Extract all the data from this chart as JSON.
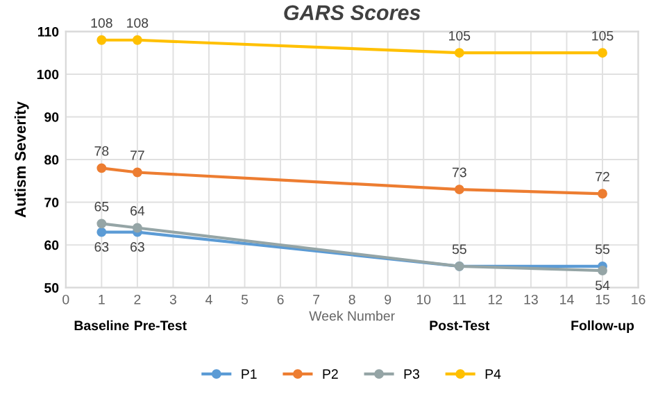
{
  "chart_data": {
    "type": "line",
    "title": "GARS Scores",
    "xlabel": "Week Number",
    "ylabel": "Autism Severity",
    "x": [
      1,
      2,
      11,
      15
    ],
    "series": [
      {
        "name": "P1",
        "color": "#5b9bd5",
        "values": [
          63,
          63,
          55,
          55
        ],
        "value_labels": [
          "63",
          "63",
          null,
          "55"
        ]
      },
      {
        "name": "P2",
        "color": "#ed7d31",
        "values": [
          78,
          77,
          73,
          72
        ],
        "value_labels": [
          "78",
          "77",
          "73",
          "72"
        ]
      },
      {
        "name": "P3",
        "color": "#95a5a6",
        "values": [
          65,
          64,
          55,
          54
        ],
        "value_labels": [
          "65",
          "64",
          "55",
          "54"
        ]
      },
      {
        "name": "P4",
        "color": "#ffc000",
        "values": [
          108,
          108,
          105,
          105
        ],
        "value_labels": [
          "108",
          "108",
          "105",
          "105"
        ]
      }
    ],
    "xlim": [
      0,
      16
    ],
    "xticks": [
      0,
      1,
      2,
      3,
      4,
      5,
      6,
      7,
      8,
      9,
      10,
      11,
      12,
      13,
      14,
      15,
      16
    ],
    "annotations": [
      "Baseline",
      "Pre-Test",
      "Post-Test",
      "Follow-up"
    ],
    "ylim": [
      50,
      110
    ],
    "yticks": [
      50,
      60,
      70,
      80,
      90,
      100,
      110
    ],
    "grid": true,
    "legend": "bottom",
    "marker": "circle",
    "line_style": "solid"
  }
}
